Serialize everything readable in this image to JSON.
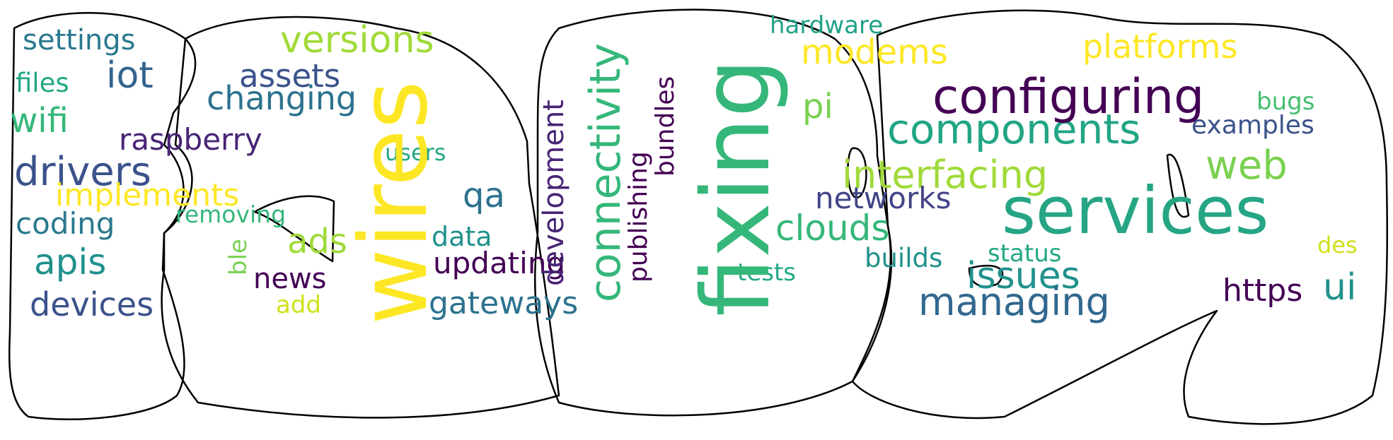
{
  "colors": {
    "background": "#ffffff",
    "outline": "#000000"
  },
  "words": [
    {
      "id": "settings",
      "text": "settings",
      "color": "#2a788e"
    },
    {
      "id": "iot",
      "text": "iot",
      "color": "#33638d"
    },
    {
      "id": "files",
      "text": "files",
      "color": "#22a884"
    },
    {
      "id": "wifi",
      "text": "wifi",
      "color": "#35b779"
    },
    {
      "id": "raspberry",
      "text": "raspberry",
      "color": "#482475"
    },
    {
      "id": "drivers",
      "text": "drivers",
      "color": "#3b528b"
    },
    {
      "id": "implements",
      "text": "implements",
      "color": "#fde725"
    },
    {
      "id": "coding",
      "text": "coding",
      "color": "#2a788e"
    },
    {
      "id": "apis",
      "text": "apis",
      "color": "#21918c"
    },
    {
      "id": "devices",
      "text": "devices",
      "color": "#3b528b"
    },
    {
      "id": "versions",
      "text": "versions",
      "color": "#a0da39"
    },
    {
      "id": "assets",
      "text": "assets",
      "color": "#3b528b"
    },
    {
      "id": "changing",
      "text": "changing",
      "color": "#2c728e"
    },
    {
      "id": "users",
      "text": "users",
      "color": "#22a884"
    },
    {
      "id": "removing",
      "text": "removing",
      "color": "#35b779"
    },
    {
      "id": "ads",
      "text": "ads",
      "color": "#a0da39"
    },
    {
      "id": "ble",
      "text": "ble",
      "color": "#7ad151"
    },
    {
      "id": "news",
      "text": "news",
      "color": "#440154"
    },
    {
      "id": "add",
      "text": "add",
      "color": "#d0e11c"
    },
    {
      "id": "wires",
      "text": "wires",
      "color": "#fde725"
    },
    {
      "id": "qa",
      "text": "qa",
      "color": "#2c728e"
    },
    {
      "id": "data",
      "text": "data",
      "color": "#21918c"
    },
    {
      "id": "updating",
      "text": "updating",
      "color": "#440154"
    },
    {
      "id": "gateways",
      "text": "gateways",
      "color": "#2c728e"
    },
    {
      "id": "development",
      "text": "development",
      "color": "#482475"
    },
    {
      "id": "connectivity",
      "text": "connectivity",
      "color": "#35b779"
    },
    {
      "id": "publishing",
      "text": "publishing",
      "color": "#440154"
    },
    {
      "id": "bundles",
      "text": "bundles",
      "color": "#440154"
    },
    {
      "id": "fixing",
      "text": "fixing",
      "color": "#35b779"
    },
    {
      "id": "hardware",
      "text": "hardware",
      "color": "#1fa187"
    },
    {
      "id": "modems",
      "text": "modems",
      "color": "#fde725"
    },
    {
      "id": "pi",
      "text": "pi",
      "color": "#7ad151"
    },
    {
      "id": "components",
      "text": "components",
      "color": "#21a585"
    },
    {
      "id": "interfacing",
      "text": "interfacing",
      "color": "#a0da39"
    },
    {
      "id": "networks",
      "text": "networks",
      "color": "#414487"
    },
    {
      "id": "clouds",
      "text": "clouds",
      "color": "#35b779"
    },
    {
      "id": "tests",
      "text": "tests",
      "color": "#22a884"
    },
    {
      "id": "builds",
      "text": "builds",
      "color": "#21918c"
    },
    {
      "id": "platforms",
      "text": "platforms",
      "color": "#fde725"
    },
    {
      "id": "configuring",
      "text": "configuring",
      "color": "#440154"
    },
    {
      "id": "bugs",
      "text": "bugs",
      "color": "#44bf70"
    },
    {
      "id": "examples",
      "text": "examples",
      "color": "#3b528b"
    },
    {
      "id": "web",
      "text": "web",
      "color": "#7ad151"
    },
    {
      "id": "services",
      "text": "services",
      "color": "#25a584"
    },
    {
      "id": "status",
      "text": "status",
      "color": "#22a884"
    },
    {
      "id": "issues",
      "text": "issues",
      "color": "#21918c"
    },
    {
      "id": "managing",
      "text": "managing",
      "color": "#31688e"
    },
    {
      "id": "des",
      "text": "des",
      "color": "#d0e11c"
    },
    {
      "id": "https",
      "text": "https",
      "color": "#440154"
    },
    {
      "id": "ui",
      "text": "ui",
      "color": "#21918c"
    }
  ]
}
